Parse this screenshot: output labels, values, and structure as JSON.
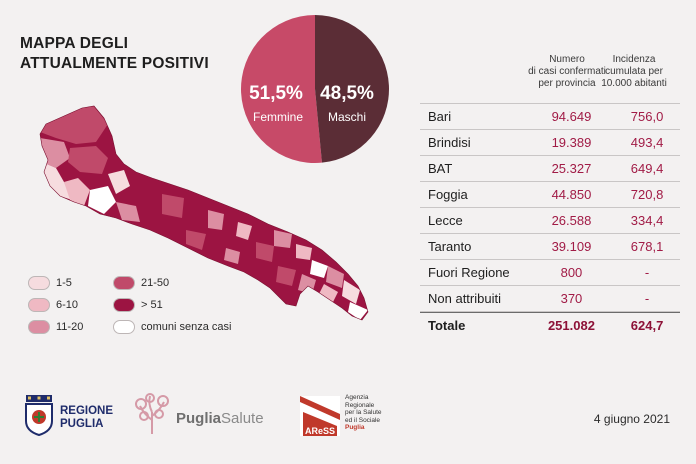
{
  "header": {
    "title_line1": "MAPPA DEGLI",
    "title_line2": "ATTUALMENTE POSITIVI"
  },
  "pie": {
    "slices": [
      {
        "label": "Femmine",
        "percent_label": "51,5%",
        "value": 51.5,
        "color": "#c74a68"
      },
      {
        "label": "Maschi",
        "percent_label": "48,5%",
        "value": 48.5,
        "color": "#5b2d36"
      }
    ]
  },
  "table": {
    "col1_header": [
      "Numero",
      "di casi confermati",
      "per provincia"
    ],
    "col2_header": [
      "Incidenza",
      "cumulata per",
      "10.000 abitanti"
    ],
    "rows": [
      {
        "name": "Bari",
        "cases": "94.649",
        "incidence": "756,0"
      },
      {
        "name": "Brindisi",
        "cases": "19.389",
        "incidence": "493,4"
      },
      {
        "name": "BAT",
        "cases": "25.327",
        "incidence": "649,4"
      },
      {
        "name": "Foggia",
        "cases": "44.850",
        "incidence": "720,8"
      },
      {
        "name": "Lecce",
        "cases": "26.588",
        "incidence": "334,4"
      },
      {
        "name": "Taranto",
        "cases": "39.109",
        "incidence": "678,1"
      },
      {
        "name": "Fuori Regione",
        "cases": "800",
        "incidence": "-"
      },
      {
        "name": "Non attribuiti",
        "cases": "370",
        "incidence": "-"
      }
    ],
    "total": {
      "name": "Totale",
      "cases": "251.082",
      "incidence": "624,7"
    }
  },
  "legend": {
    "items": [
      {
        "label": "1-5",
        "color": "#f6dcdf"
      },
      {
        "label": "6-10",
        "color": "#efb9c3"
      },
      {
        "label": "11-20",
        "color": "#dc8ea2"
      },
      {
        "label": "21-50",
        "color": "#c04a6a"
      },
      {
        "label": "> 51",
        "color": "#9c1442"
      },
      {
        "label": "comuni senza casi",
        "color": "#ffffff"
      }
    ]
  },
  "logos": {
    "regione_line1": "REGIONE",
    "regione_line2": "PUGLIA",
    "puglia_salute_bold": "Puglia",
    "puglia_salute_light": "Salute",
    "ares_short": "AReSS",
    "ares_full": [
      "Agenzia",
      "Regionale",
      "per la Salute",
      "ed il Sociale",
      "Puglia"
    ]
  },
  "footer": {
    "date": "4 giugno 2021"
  },
  "colors": {
    "accent": "#a11b46",
    "dark_accent": "#5b2d36",
    "background": "#f3f1f1"
  }
}
